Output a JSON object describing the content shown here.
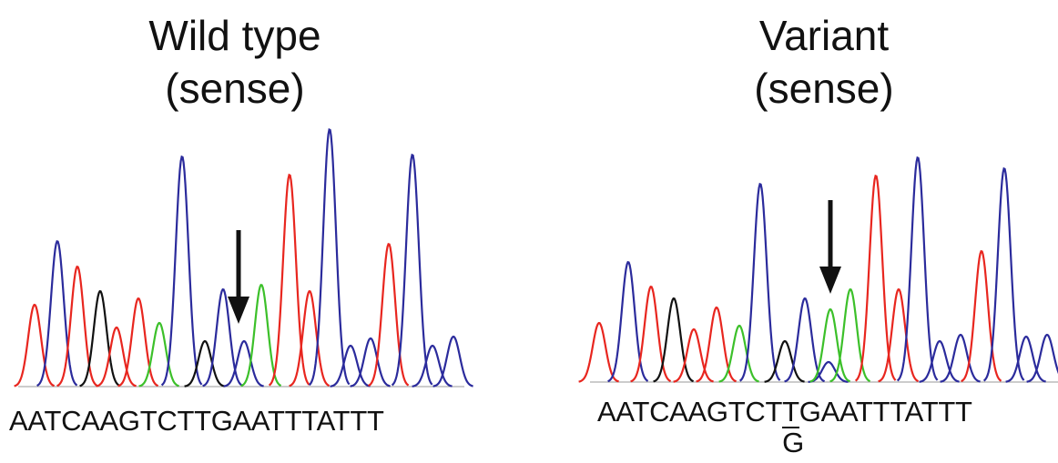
{
  "panels": [
    {
      "title": [
        "Wild type",
        "(sense)"
      ],
      "sequence": [
        "AATCAAGTCTTGAATTTATTT"
      ]
    },
    {
      "title": [
        "Variant",
        "(sense)"
      ],
      "sequence": [
        "AATCAAGTCT",
        "T",
        "GAATTTATTT"
      ],
      "variant": "G"
    }
  ]
}
